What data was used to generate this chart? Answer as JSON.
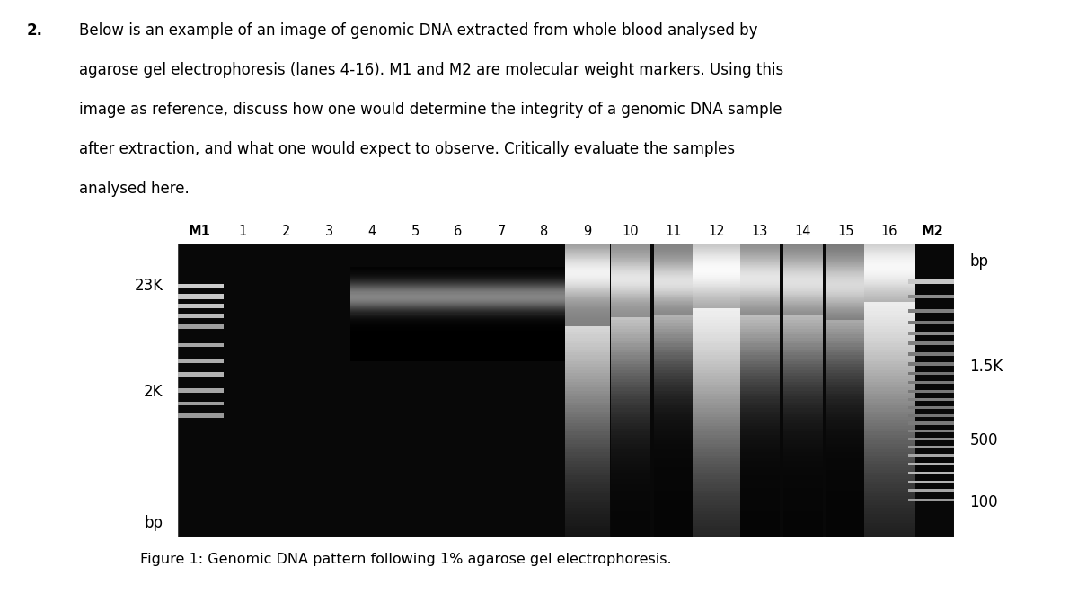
{
  "fig_width": 12.0,
  "fig_height": 6.61,
  "figure_caption": "Figure 1: Genomic DNA pattern following 1% agarose gel electrophoresis.",
  "lane_labels": [
    "M1",
    "1",
    "2",
    "3",
    "4",
    "5",
    "6",
    "7",
    "8",
    "9",
    "10",
    "11",
    "12",
    "13",
    "14",
    "15",
    "16",
    "M2"
  ],
  "left_label_23K": "23K",
  "left_label_2K": "2K",
  "left_label_bp": "bp",
  "right_label_bp": "bp",
  "right_label_15K": "1.5K",
  "right_label_500": "500",
  "right_label_100": "100",
  "gel_bg": "#080808",
  "question_num": "2.",
  "question_body": "Below is an example of an image of genomic DNA extracted from whole blood analysed by agarose gel electrophoresis (lanes 4-16). M1 and M2 are molecular weight markers. Using this image as reference, discuss how one would determine the integrity of a genomic DNA sample after extraction, and what one would expect to observe. Critically evaluate the samples analysed here."
}
